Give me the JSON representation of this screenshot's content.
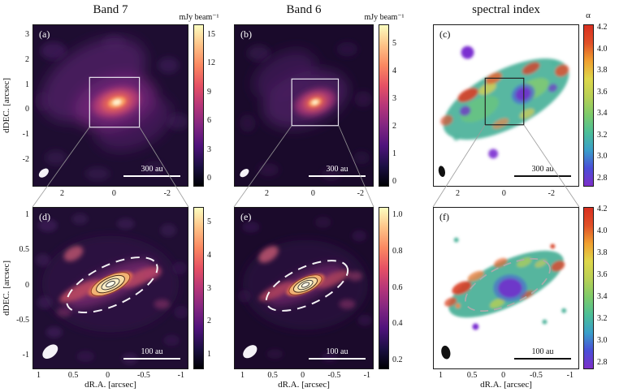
{
  "columns": [
    {
      "title": "Band 7",
      "cbar_title": "mJy beam⁻¹"
    },
    {
      "title": "Band 6",
      "cbar_title": "mJy beam⁻¹"
    },
    {
      "title": "spectral index",
      "cbar_title": "α"
    }
  ],
  "axes": {
    "ylabel": "dDEC. [arcsec]",
    "xlabel": "dR.A. [arcsec]"
  },
  "panels": {
    "a": {
      "label": "(a)",
      "scalebar": "300 au",
      "yticks": [
        "3",
        "2",
        "1",
        "0",
        "-1",
        "-2"
      ],
      "xticks": [
        "2",
        "0",
        "-2"
      ],
      "cbar_ticks": [
        "15",
        "12",
        "9",
        "6",
        "3",
        "0"
      ]
    },
    "b": {
      "label": "(b)",
      "scalebar": "300 au",
      "xticks": [
        "2",
        "0",
        "-2"
      ],
      "cbar_ticks": [
        "5",
        "4",
        "3",
        "2",
        "1",
        "0"
      ]
    },
    "c": {
      "label": "(c)",
      "scalebar": "300 au",
      "xticks": [
        "2",
        "0",
        "-2"
      ],
      "cbar_ticks": [
        "4.2",
        "4.0",
        "3.8",
        "3.6",
        "3.4",
        "3.2",
        "3.0",
        "2.8"
      ]
    },
    "d": {
      "label": "(d)",
      "scalebar": "100 au",
      "yticks": [
        "1",
        "0.5",
        "0",
        "-0.5",
        "-1"
      ],
      "xticks": [
        "1",
        "0.5",
        "0",
        "-0.5",
        "-1"
      ],
      "cbar_ticks": [
        "5",
        "4",
        "3",
        "2",
        "1"
      ]
    },
    "e": {
      "label": "(e)",
      "scalebar": "100 au",
      "xticks": [
        "1",
        "0.5",
        "0",
        "-0.5",
        "-1"
      ],
      "cbar_ticks": [
        "1.0",
        "0.8",
        "0.6",
        "0.4",
        "0.2"
      ]
    },
    "f": {
      "label": "(f)",
      "scalebar": "100 au",
      "xticks": [
        "1",
        "0.5",
        "0",
        "-0.5",
        "-1"
      ],
      "cbar_ticks": [
        "4.2",
        "4.0",
        "3.8",
        "3.6",
        "3.4",
        "3.2",
        "3.0",
        "2.8"
      ]
    }
  },
  "colors": {
    "continuum_colormap_low": "#0b0418",
    "continuum_colormap_high": "#fcf6c8",
    "spectral_index_low": "#7d2fc9",
    "spectral_index_high": "#d92f20"
  }
}
